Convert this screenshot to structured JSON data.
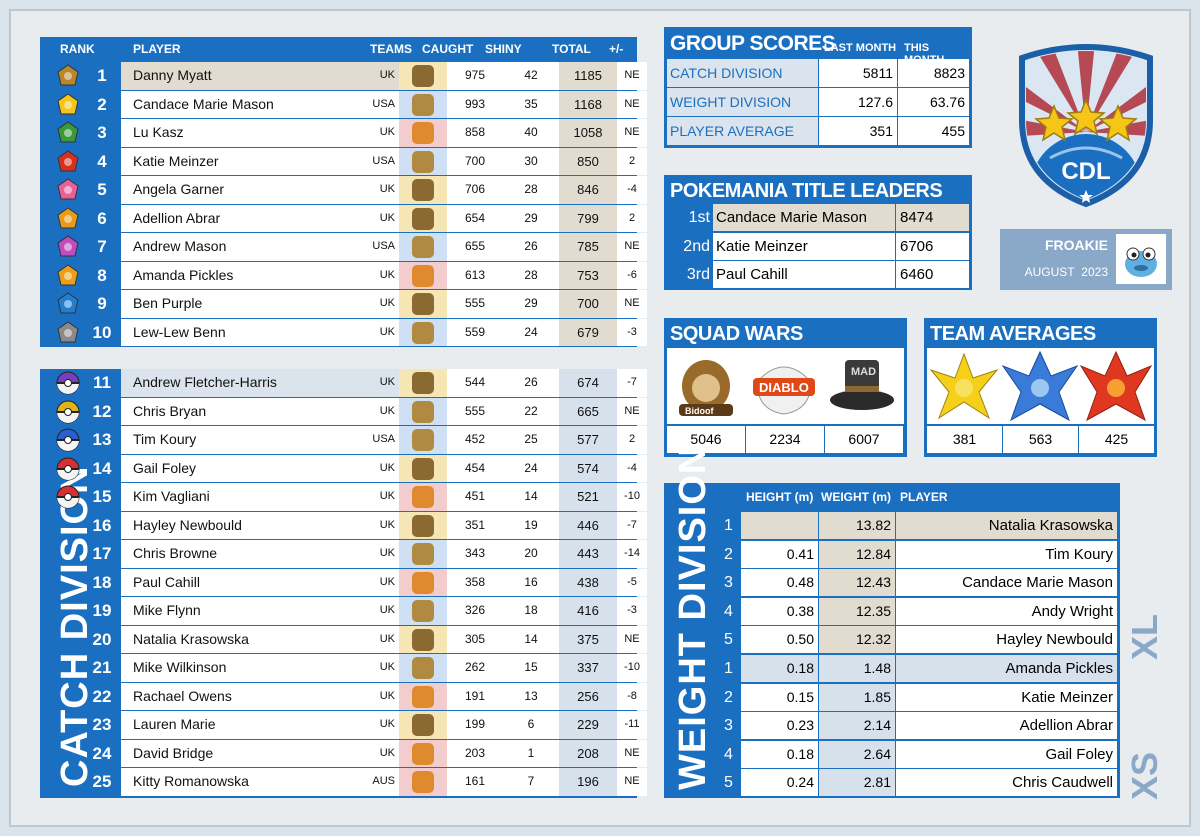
{
  "top_table": {
    "headers": {
      "rank": "RANK",
      "player": "PLAYER",
      "teams": "TEAMS",
      "caught": "CAUGHT",
      "shiny": "SHINY",
      "total": "TOTAL",
      "pm": "+/-"
    },
    "rows": [
      {
        "rank": "1",
        "name": "Danny Myatt",
        "country": "UK",
        "team": "gold",
        "caught": "975",
        "shiny": "42",
        "total": "1185",
        "pm": "NE",
        "icon": "gold-medal-icon",
        "icon_color": "#b8862c"
      },
      {
        "rank": "2",
        "name": "Candace Marie Mason",
        "country": "USA",
        "team": "blue",
        "caught": "993",
        "shiny": "35",
        "total": "1168",
        "pm": "NE",
        "icon": "pikachu-icon",
        "icon_color": "#f5c518"
      },
      {
        "rank": "3",
        "name": "Lu Kasz",
        "country": "UK",
        "team": "red",
        "caught": "858",
        "shiny": "40",
        "total": "1058",
        "pm": "NE",
        "icon": "leaf-icon",
        "icon_color": "#3a9a3a"
      },
      {
        "rank": "4",
        "name": "Katie Meinzer",
        "country": "USA",
        "team": "blue",
        "caught": "700",
        "shiny": "30",
        "total": "850",
        "pm": "2",
        "icon": "flame-badge-icon",
        "icon_color": "#d8301e"
      },
      {
        "rank": "5",
        "name": "Angela Garner",
        "country": "UK",
        "team": "gold",
        "caught": "706",
        "shiny": "28",
        "total": "846",
        "pm": "-4",
        "icon": "heart-badge-icon",
        "icon_color": "#e8609a"
      },
      {
        "rank": "6",
        "name": "Adellion Abrar",
        "country": "UK",
        "team": "gold",
        "caught": "654",
        "shiny": "29",
        "total": "799",
        "pm": "2",
        "icon": "sun-badge-icon",
        "icon_color": "#e89a18"
      },
      {
        "rank": "7",
        "name": "Andrew Mason",
        "country": "USA",
        "team": "blue",
        "caught": "655",
        "shiny": "26",
        "total": "785",
        "pm": "NE",
        "icon": "flower-badge-icon",
        "icon_color": "#c04cc0"
      },
      {
        "rank": "8",
        "name": "Amanda Pickles",
        "country": "UK",
        "team": "red",
        "caught": "613",
        "shiny": "28",
        "total": "753",
        "pm": "-6",
        "icon": "star-badge-icon",
        "icon_color": "#e8a018"
      },
      {
        "rank": "9",
        "name": "Ben Purple",
        "country": "UK",
        "team": "gold",
        "caught": "555",
        "shiny": "29",
        "total": "700",
        "pm": "NE",
        "icon": "drop-badge-icon",
        "icon_color": "#1e7fd0"
      },
      {
        "rank": "10",
        "name": "Lew-Lew Benn",
        "country": "UK",
        "team": "blue",
        "caught": "559",
        "shiny": "24",
        "total": "679",
        "pm": "-3",
        "icon": "rock-badge-icon",
        "icon_color": "#8a8a8a"
      }
    ]
  },
  "catch_division": {
    "title": "CATCH DIVISION",
    "rows": [
      {
        "rank": "11",
        "name": "Andrew Fletcher-Harris",
        "country": "UK",
        "team": "gold",
        "caught": "544",
        "shiny": "26",
        "total": "674",
        "pm": "-7",
        "icon": "master-ball-icon",
        "icon_color": "#7a3fc0"
      },
      {
        "rank": "12",
        "name": "Chris Bryan",
        "country": "UK",
        "team": "blue",
        "caught": "555",
        "shiny": "22",
        "total": "665",
        "pm": "NE",
        "icon": "ultra-ball-icon",
        "icon_color": "#e0b418"
      },
      {
        "rank": "13",
        "name": "Tim Koury",
        "country": "USA",
        "team": "blue",
        "caught": "452",
        "shiny": "25",
        "total": "577",
        "pm": "2",
        "icon": "great-ball-icon",
        "icon_color": "#2a5fd0"
      },
      {
        "rank": "14",
        "name": "Gail Foley",
        "country": "UK",
        "team": "gold",
        "caught": "454",
        "shiny": "24",
        "total": "574",
        "pm": "-4",
        "icon": "premier-ball-icon",
        "icon_color": "#d83030"
      },
      {
        "rank": "15",
        "name": "Kim Vagliani",
        "country": "UK",
        "team": "red",
        "caught": "451",
        "shiny": "14",
        "total": "521",
        "pm": "-10",
        "icon": "poke-ball-icon",
        "icon_color": "#d83030"
      },
      {
        "rank": "16",
        "name": "Hayley Newbould",
        "country": "UK",
        "team": "gold",
        "caught": "351",
        "shiny": "19",
        "total": "446",
        "pm": "-7",
        "icon": "",
        "icon_color": ""
      },
      {
        "rank": "17",
        "name": "Chris Browne",
        "country": "UK",
        "team": "blue",
        "caught": "343",
        "shiny": "20",
        "total": "443",
        "pm": "-14",
        "icon": "",
        "icon_color": ""
      },
      {
        "rank": "18",
        "name": "Paul Cahill",
        "country": "UK",
        "team": "red",
        "caught": "358",
        "shiny": "16",
        "total": "438",
        "pm": "-5",
        "icon": "",
        "icon_color": ""
      },
      {
        "rank": "19",
        "name": "Mike Flynn",
        "country": "UK",
        "team": "blue",
        "caught": "326",
        "shiny": "18",
        "total": "416",
        "pm": "-3",
        "icon": "",
        "icon_color": ""
      },
      {
        "rank": "20",
        "name": "Natalia Krasowska",
        "country": "UK",
        "team": "gold",
        "caught": "305",
        "shiny": "14",
        "total": "375",
        "pm": "NE",
        "icon": "",
        "icon_color": ""
      },
      {
        "rank": "21",
        "name": "Mike Wilkinson",
        "country": "UK",
        "team": "blue",
        "caught": "262",
        "shiny": "15",
        "total": "337",
        "pm": "-10",
        "icon": "",
        "icon_color": ""
      },
      {
        "rank": "22",
        "name": "Rachael Owens",
        "country": "UK",
        "team": "red",
        "caught": "191",
        "shiny": "13",
        "total": "256",
        "pm": "-8",
        "icon": "",
        "icon_color": ""
      },
      {
        "rank": "23",
        "name": "Lauren Marie",
        "country": "UK",
        "team": "gold",
        "caught": "199",
        "shiny": "6",
        "total": "229",
        "pm": "-11",
        "icon": "",
        "icon_color": ""
      },
      {
        "rank": "24",
        "name": "David Bridge",
        "country": "UK",
        "team": "red",
        "caught": "203",
        "shiny": "1",
        "total": "208",
        "pm": "NE",
        "icon": "",
        "icon_color": ""
      },
      {
        "rank": "25",
        "name": "Kitty Romanowska",
        "country": "AUS",
        "team": "red",
        "caught": "161",
        "shiny": "7",
        "total": "196",
        "pm": "NE",
        "icon": "",
        "icon_color": ""
      }
    ]
  },
  "group_scores": {
    "title": "GROUP SCORES",
    "col1": "LAST MONTH",
    "col2": "THIS MONTH",
    "rows": [
      {
        "label": "CATCH DIVISION",
        "last": "5811",
        "this": "8823"
      },
      {
        "label": "WEIGHT DIVISION",
        "last": "127.6",
        "this": "63.76"
      },
      {
        "label": "PLAYER AVERAGE",
        "last": "351",
        "this": "455"
      }
    ]
  },
  "title_leaders": {
    "title": "POKEMANIA TITLE LEADERS",
    "rows": [
      {
        "place": "1st",
        "name": "Candace Marie Mason",
        "score": "8474"
      },
      {
        "place": "2nd",
        "name": "Katie Meinzer",
        "score": "6706"
      },
      {
        "place": "3rd",
        "name": "Paul Cahill",
        "score": "6460"
      }
    ]
  },
  "logo": {
    "text": "CDL"
  },
  "featured": {
    "name": "FROAKIE",
    "month": "AUGUST",
    "year": "2023"
  },
  "squad_wars": {
    "title": "SQUAD WARS",
    "scores": [
      "5046",
      "2234",
      "6007"
    ],
    "names": [
      "Bidoof",
      "DIABLO",
      "MAD"
    ]
  },
  "team_averages": {
    "title": "TEAM AVERAGES",
    "scores": [
      "381",
      "563",
      "425"
    ]
  },
  "weight_division": {
    "title": "WEIGHT DIVISION",
    "headers": {
      "height": "HEIGHT (m)",
      "weight": "WEIGHT (m)",
      "player": "PLAYER"
    },
    "xl_label": "XL",
    "xs_label": "XS",
    "xl": [
      {
        "rank": "1",
        "height": "",
        "weight": "13.82",
        "player": "Natalia Krasowska"
      },
      {
        "rank": "2",
        "height": "0.41",
        "weight": "12.84",
        "player": "Tim Koury"
      },
      {
        "rank": "3",
        "height": "0.48",
        "weight": "12.43",
        "player": "Candace Marie Mason"
      },
      {
        "rank": "4",
        "height": "0.38",
        "weight": "12.35",
        "player": "Andy Wright"
      },
      {
        "rank": "5",
        "height": "0.50",
        "weight": "12.32",
        "player": "Hayley Newbould"
      }
    ],
    "xs": [
      {
        "rank": "1",
        "height": "0.18",
        "weight": "1.48",
        "player": "Amanda Pickles"
      },
      {
        "rank": "2",
        "height": "0.15",
        "weight": "1.85",
        "player": "Katie Meinzer"
      },
      {
        "rank": "3",
        "height": "0.23",
        "weight": "2.14",
        "player": "Adellion Abrar"
      },
      {
        "rank": "4",
        "height": "0.18",
        "weight": "2.64",
        "player": "Gail Foley"
      },
      {
        "rank": "5",
        "height": "0.24",
        "weight": "2.81",
        "player": "Chris Caudwell"
      }
    ]
  },
  "colors": {
    "brand_blue": "#1b6fc1",
    "gold_team": "#f7e6b5",
    "blue_team": "#cfe0f4",
    "red_team": "#f3cdcd",
    "highlight": "#e2dbd0"
  }
}
